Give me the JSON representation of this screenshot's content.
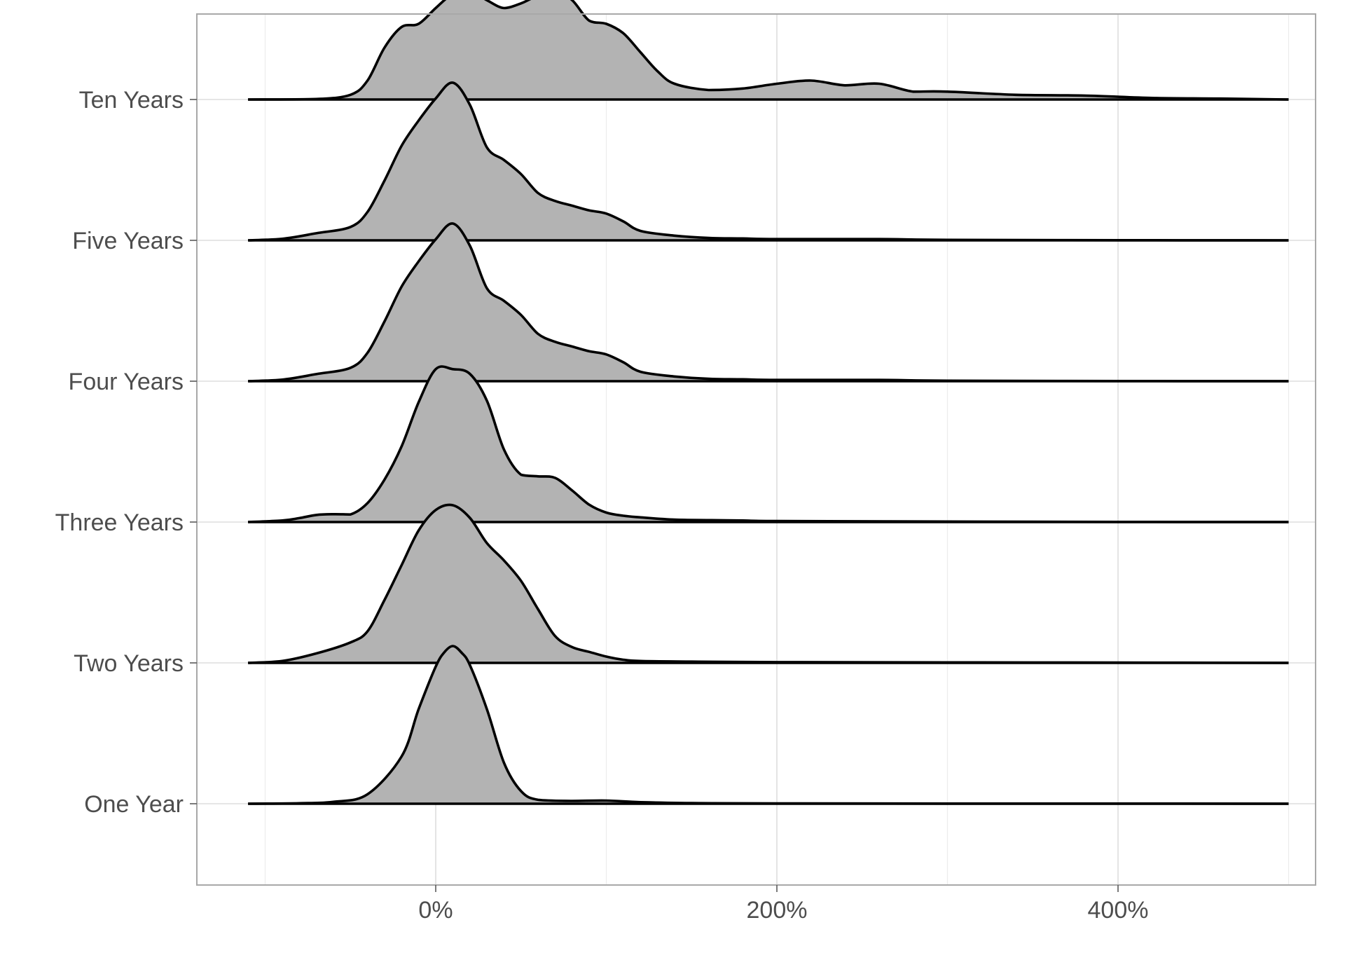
{
  "chart_data": {
    "type": "ridgeline",
    "title": "",
    "xlabel": "",
    "ylabel": "",
    "x_unit": "%",
    "xlim": [
      -100,
      520
    ],
    "x_major_ticks": [
      0,
      200,
      400
    ],
    "x_tick_labels": [
      "0%",
      "200%",
      "400%"
    ],
    "x_minor_ticks": [
      -100,
      100,
      300,
      500
    ],
    "categories": [
      "One Year",
      "Two Years",
      "Three Years",
      "Four Years",
      "Five Years",
      "Ten Years"
    ],
    "grid": true,
    "fill_color": "#b3b3b3",
    "line_color": "#000000",
    "series": [
      {
        "category": "One Year",
        "x": [
          -110,
          -80,
          -60,
          -40,
          -20,
          -10,
          0,
          5,
          10,
          15,
          20,
          30,
          40,
          50,
          60,
          80,
          100,
          120,
          150,
          200,
          300,
          400,
          500
        ],
        "density": [
          0,
          0.003,
          0.012,
          0.06,
          0.3,
          0.6,
          0.87,
          0.96,
          1.0,
          0.96,
          0.88,
          0.6,
          0.26,
          0.08,
          0.025,
          0.018,
          0.02,
          0.01,
          0.004,
          0.002,
          0.001,
          0.001,
          0
        ]
      },
      {
        "category": "Two Years",
        "x": [
          -110,
          -90,
          -70,
          -50,
          -40,
          -30,
          -20,
          -10,
          0,
          10,
          20,
          30,
          40,
          50,
          60,
          70,
          80,
          90,
          100,
          110,
          120,
          150,
          200,
          300,
          400,
          500
        ],
        "density": [
          0,
          0.012,
          0.06,
          0.13,
          0.2,
          0.4,
          0.62,
          0.84,
          0.97,
          1.0,
          0.92,
          0.76,
          0.65,
          0.52,
          0.34,
          0.17,
          0.1,
          0.07,
          0.04,
          0.02,
          0.012,
          0.008,
          0.005,
          0.003,
          0.002,
          0
        ]
      },
      {
        "category": "Three Years",
        "x": [
          -110,
          -90,
          -80,
          -70,
          -60,
          -50,
          -40,
          -30,
          -20,
          -10,
          0,
          10,
          20,
          30,
          40,
          50,
          60,
          70,
          80,
          90,
          100,
          110,
          120,
          140,
          160,
          180,
          200,
          300,
          400,
          500
        ],
        "density": [
          0,
          0.01,
          0.025,
          0.045,
          0.05,
          0.048,
          0.12,
          0.27,
          0.48,
          0.76,
          0.97,
          0.97,
          0.94,
          0.77,
          0.46,
          0.3,
          0.29,
          0.28,
          0.2,
          0.11,
          0.06,
          0.04,
          0.03,
          0.015,
          0.012,
          0.01,
          0.006,
          0.003,
          0.001,
          0
        ]
      },
      {
        "category": "Four Years",
        "x": [
          -110,
          -90,
          -70,
          -50,
          -40,
          -30,
          -20,
          -10,
          0,
          10,
          20,
          30,
          40,
          50,
          60,
          70,
          80,
          90,
          100,
          110,
          120,
          140,
          160,
          180,
          200,
          260,
          300,
          400,
          500
        ],
        "density": [
          0,
          0.01,
          0.045,
          0.085,
          0.18,
          0.38,
          0.6,
          0.76,
          0.9,
          1.0,
          0.86,
          0.59,
          0.51,
          0.42,
          0.3,
          0.25,
          0.22,
          0.19,
          0.17,
          0.12,
          0.06,
          0.03,
          0.015,
          0.012,
          0.008,
          0.008,
          0.003,
          0.001,
          0
        ]
      },
      {
        "category": "Five Years",
        "x": [
          -110,
          -90,
          -70,
          -50,
          -40,
          -30,
          -20,
          -10,
          0,
          10,
          20,
          30,
          40,
          50,
          60,
          70,
          80,
          90,
          100,
          110,
          120,
          140,
          160,
          180,
          200,
          260,
          300,
          400,
          500
        ],
        "density": [
          0,
          0.01,
          0.045,
          0.085,
          0.18,
          0.38,
          0.6,
          0.76,
          0.9,
          1.0,
          0.86,
          0.59,
          0.51,
          0.42,
          0.3,
          0.25,
          0.22,
          0.19,
          0.17,
          0.12,
          0.06,
          0.03,
          0.015,
          0.012,
          0.008,
          0.008,
          0.003,
          0.001,
          0
        ]
      },
      {
        "category": "Ten Years",
        "x": [
          -110,
          -70,
          -50,
          -40,
          -30,
          -20,
          -10,
          0,
          10,
          20,
          30,
          40,
          50,
          60,
          70,
          80,
          90,
          100,
          110,
          120,
          130,
          140,
          160,
          180,
          200,
          220,
          240,
          260,
          280,
          300,
          340,
          380,
          420,
          460,
          500
        ],
        "density": [
          0,
          0.003,
          0.03,
          0.12,
          0.33,
          0.46,
          0.48,
          0.58,
          0.67,
          0.69,
          0.63,
          0.58,
          0.61,
          0.66,
          0.69,
          0.63,
          0.5,
          0.48,
          0.42,
          0.3,
          0.18,
          0.1,
          0.06,
          0.07,
          0.1,
          0.12,
          0.09,
          0.1,
          0.05,
          0.05,
          0.03,
          0.025,
          0.01,
          0.006,
          0
        ]
      }
    ]
  }
}
